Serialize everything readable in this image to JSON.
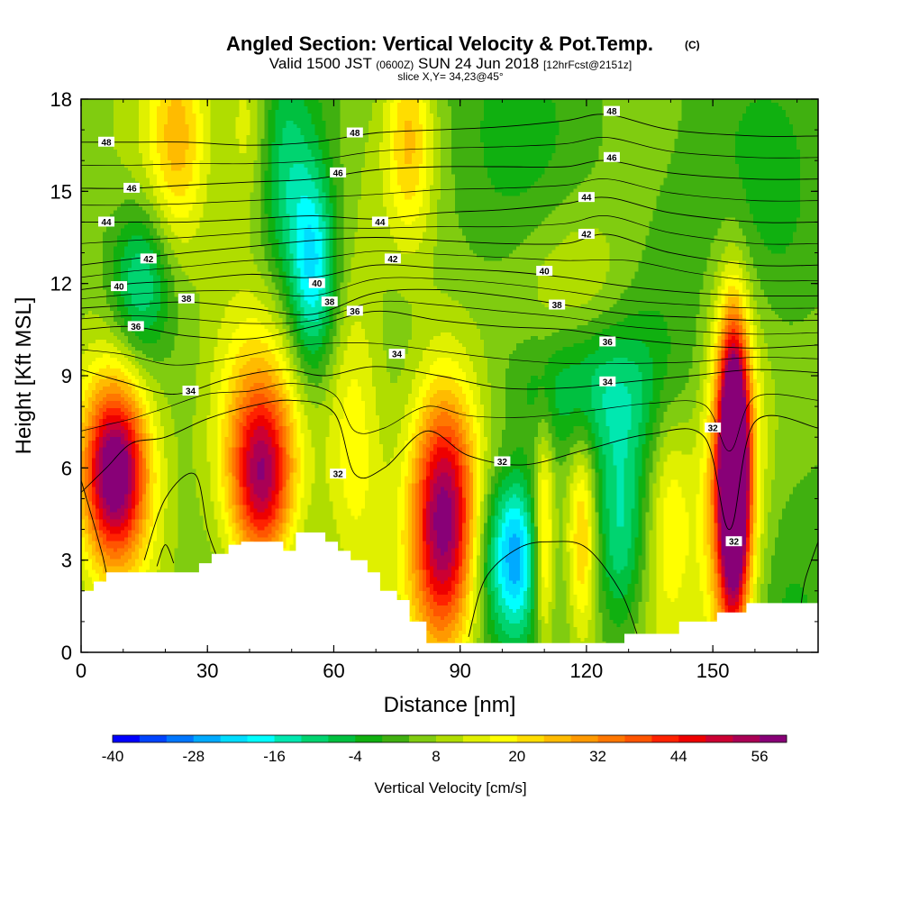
{
  "chart_data": {
    "type": "heatmap",
    "title": "Angled Section: Vertical Velocity & Pot.Temp.",
    "title_mark": "(C)",
    "subtitle_prefix": "Valid 1500 JST",
    "subtitle_utc": "(0600Z)",
    "subtitle_date": "SUN 24 Jun 2018",
    "subtitle_fcst": "[12hrFcst@2151z]",
    "slice": "slice X,Y= 34,23@45°",
    "xlabel": "Distance [nm]",
    "ylabel": "Height [Kft MSL]",
    "xlim": [
      0,
      175
    ],
    "ylim": [
      0,
      18
    ],
    "xticks": [
      "0",
      "30",
      "60",
      "90",
      "120",
      "150"
    ],
    "yticks": [
      "0",
      "3",
      "6",
      "9",
      "12",
      "15",
      "18"
    ],
    "colorbar": {
      "label": "Vertical Velocity [cm/s]",
      "min": -40,
      "max": 60,
      "step": 4,
      "tick_labels": [
        "-40",
        "-28",
        "-16",
        "-4",
        "8",
        "20",
        "32",
        "44",
        "56"
      ],
      "colors": [
        "#0000ff",
        "#0044ff",
        "#0077ff",
        "#00aaff",
        "#00ddff",
        "#00ffff",
        "#00e8b0",
        "#00d470",
        "#00c040",
        "#10b010",
        "#40b010",
        "#80cc10",
        "#b0dd00",
        "#e0f000",
        "#ffff00",
        "#ffdd00",
        "#ffbb00",
        "#ff9900",
        "#ff7700",
        "#ff5500",
        "#ff2200",
        "#ee0000",
        "#cc0033",
        "#aa0055",
        "#880077"
      ]
    },
    "terrain_top_kft": [
      [
        0,
        2
      ],
      [
        3,
        2
      ],
      [
        3,
        2.3
      ],
      [
        6,
        2.3
      ],
      [
        6,
        2.6
      ],
      [
        28,
        2.6
      ],
      [
        28,
        2.9
      ],
      [
        31,
        2.9
      ],
      [
        31,
        3.2
      ],
      [
        35,
        3.2
      ],
      [
        35,
        3.5
      ],
      [
        38,
        3.5
      ],
      [
        38,
        3.6
      ],
      [
        48,
        3.6
      ],
      [
        48,
        3.3
      ],
      [
        51,
        3.3
      ],
      [
        51,
        3.9
      ],
      [
        58,
        3.9
      ],
      [
        58,
        3.6
      ],
      [
        61,
        3.6
      ],
      [
        61,
        3.3
      ],
      [
        64,
        3.3
      ],
      [
        64,
        3.0
      ],
      [
        68,
        3.0
      ],
      [
        68,
        2.6
      ],
      [
        71,
        2.6
      ],
      [
        71,
        2.0
      ],
      [
        75,
        2.0
      ],
      [
        75,
        1.7
      ],
      [
        78,
        1.7
      ],
      [
        78,
        1.0
      ],
      [
        82,
        1.0
      ],
      [
        82,
        0.3
      ],
      [
        129,
        0.3
      ],
      [
        129,
        0.6
      ],
      [
        142,
        0.6
      ],
      [
        142,
        1.0
      ],
      [
        151,
        1.0
      ],
      [
        151,
        1.3
      ],
      [
        158,
        1.3
      ],
      [
        158,
        1.6
      ],
      [
        175,
        1.6
      ]
    ],
    "velocity_cells": [
      {
        "x": 8,
        "y": 5.8,
        "sx": 5,
        "sy": 1.9,
        "w": 46
      },
      {
        "x": 9,
        "y": 6.5,
        "sx": 9,
        "sy": 3.5,
        "w": 20
      },
      {
        "x": 43,
        "y": 5.6,
        "sx": 5,
        "sy": 2.0,
        "w": 36
      },
      {
        "x": 41,
        "y": 7.0,
        "sx": 8,
        "sy": 3.5,
        "w": 16
      },
      {
        "x": 65,
        "y": 7.0,
        "sx": 5,
        "sy": 3.5,
        "w": 14
      },
      {
        "x": 86,
        "y": 4.2,
        "sx": 5,
        "sy": 2.8,
        "w": 38
      },
      {
        "x": 86,
        "y": 5.0,
        "sx": 8,
        "sy": 3.5,
        "w": 16
      },
      {
        "x": 155,
        "y": 6.0,
        "sx": 2.4,
        "sy": 3.0,
        "w": 74
      },
      {
        "x": 154,
        "y": 5.0,
        "sx": 5,
        "sy": 4.5,
        "w": 32
      },
      {
        "x": 140,
        "y": 4.8,
        "sx": 4,
        "sy": 3.0,
        "w": 16
      },
      {
        "x": 110,
        "y": 3.6,
        "sx": 1.6,
        "sy": 2.6,
        "w": 18
      },
      {
        "x": 119,
        "y": 3.8,
        "sx": 2.4,
        "sy": 2.4,
        "w": 20
      },
      {
        "x": 23,
        "y": 16.8,
        "sx": 5,
        "sy": 2.5,
        "w": 18
      },
      {
        "x": 40,
        "y": 17.0,
        "sx": 4,
        "sy": 2.2,
        "w": 12
      },
      {
        "x": 78,
        "y": 16.8,
        "sx": 4,
        "sy": 2.5,
        "w": 18
      },
      {
        "x": 118,
        "y": 12.0,
        "sx": 10,
        "sy": 2.0,
        "w": 10
      },
      {
        "x": 14,
        "y": 12.0,
        "sx": 5,
        "sy": 1.8,
        "w": -20
      },
      {
        "x": 55,
        "y": 12.3,
        "sx": 4,
        "sy": 2.4,
        "w": -26
      },
      {
        "x": 99,
        "y": 3.3,
        "sx": 4,
        "sy": 2.0,
        "w": -20
      },
      {
        "x": 104,
        "y": 3.2,
        "sx": 3,
        "sy": 1.8,
        "w": -22
      },
      {
        "x": 128,
        "y": 3.8,
        "sx": 4,
        "sy": 2.5,
        "w": -16
      },
      {
        "x": 118,
        "y": 8.6,
        "sx": 13,
        "sy": 1.6,
        "w": -14
      },
      {
        "x": 48,
        "y": 15.5,
        "sx": 5,
        "sy": 3.0,
        "w": -12
      },
      {
        "x": 150,
        "y": 15.0,
        "sx": 16,
        "sy": 4.0,
        "w": -4
      },
      {
        "x": 165,
        "y": 13.5,
        "sx": 8,
        "sy": 3.0,
        "w": -2
      }
    ],
    "isentropes": [
      {
        "label": "32",
        "pts": [
          [
            0,
            5.2
          ],
          [
            6,
            6.0
          ],
          [
            12,
            6.8
          ],
          [
            20,
            7.0
          ],
          [
            30,
            7.6
          ],
          [
            40,
            8.0
          ],
          [
            50,
            8.2
          ],
          [
            60,
            7.8
          ],
          [
            65,
            5.8
          ],
          [
            72,
            6.0
          ],
          [
            82,
            7.2
          ],
          [
            92,
            6.4
          ],
          [
            105,
            6.1
          ],
          [
            120,
            6.6
          ],
          [
            135,
            7.1
          ],
          [
            148,
            7.0
          ],
          [
            154,
            4.0
          ],
          [
            160,
            7.5
          ],
          [
            175,
            7.3
          ]
        ],
        "labels": [
          [
            61,
            5.8
          ],
          [
            100,
            6.2
          ],
          [
            150,
            7.3
          ],
          [
            155,
            3.6
          ]
        ]
      },
      {
        "label": "34",
        "pts": [
          [
            0,
            9.2
          ],
          [
            10,
            8.8
          ],
          [
            22,
            8.4
          ],
          [
            35,
            8.9
          ],
          [
            48,
            9.2
          ],
          [
            58,
            9.0
          ],
          [
            70,
            9.3
          ],
          [
            85,
            9.0
          ],
          [
            100,
            8.6
          ],
          [
            115,
            8.6
          ],
          [
            130,
            8.8
          ],
          [
            145,
            9.0
          ],
          [
            160,
            9.2
          ],
          [
            175,
            9.1
          ]
        ],
        "labels": [
          [
            26,
            8.5
          ],
          [
            75,
            9.7
          ],
          [
            125,
            8.8
          ]
        ]
      },
      {
        "label": "36",
        "pts": [
          [
            0,
            10.5
          ],
          [
            12,
            10.6
          ],
          [
            25,
            10.3
          ],
          [
            40,
            10.2
          ],
          [
            55,
            10.6
          ],
          [
            70,
            11.1
          ],
          [
            85,
            10.8
          ],
          [
            100,
            10.6
          ],
          [
            115,
            10.5
          ],
          [
            130,
            10.2
          ],
          [
            145,
            10.0
          ],
          [
            160,
            9.9
          ],
          [
            175,
            10.0
          ]
        ],
        "labels": [
          [
            13,
            10.6
          ],
          [
            65,
            11.1
          ],
          [
            125,
            10.1
          ]
        ]
      },
      {
        "label": "38",
        "pts": [
          [
            0,
            11.2
          ],
          [
            12,
            11.3
          ],
          [
            25,
            11.4
          ],
          [
            40,
            11.2
          ],
          [
            55,
            11.0
          ],
          [
            70,
            11.7
          ],
          [
            85,
            11.8
          ],
          [
            100,
            11.6
          ],
          [
            115,
            11.3
          ],
          [
            130,
            11.0
          ],
          [
            145,
            10.9
          ],
          [
            160,
            10.8
          ],
          [
            175,
            10.8
          ]
        ],
        "labels": [
          [
            25,
            11.5
          ],
          [
            59,
            11.4
          ],
          [
            113,
            11.3
          ]
        ]
      },
      {
        "label": "40",
        "pts": [
          [
            0,
            11.8
          ],
          [
            12,
            12.0
          ],
          [
            25,
            12.1
          ],
          [
            40,
            12.3
          ],
          [
            55,
            12.2
          ],
          [
            70,
            12.6
          ],
          [
            85,
            12.5
          ],
          [
            100,
            12.4
          ],
          [
            115,
            12.2
          ],
          [
            130,
            11.9
          ],
          [
            145,
            11.7
          ],
          [
            160,
            11.6
          ],
          [
            175,
            11.6
          ]
        ],
        "labels": [
          [
            9,
            11.9
          ],
          [
            56,
            12.0
          ],
          [
            110,
            12.4
          ]
        ]
      },
      {
        "label": "42",
        "pts": [
          [
            0,
            12.6
          ],
          [
            12,
            12.8
          ],
          [
            25,
            13.0
          ],
          [
            40,
            13.2
          ],
          [
            55,
            13.4
          ],
          [
            70,
            13.5
          ],
          [
            85,
            13.4
          ],
          [
            100,
            13.3
          ],
          [
            115,
            13.3
          ],
          [
            125,
            13.6
          ],
          [
            140,
            13.0
          ],
          [
            160,
            12.6
          ],
          [
            175,
            12.6
          ]
        ],
        "labels": [
          [
            16,
            12.8
          ],
          [
            74,
            12.8
          ],
          [
            120,
            13.6
          ]
        ]
      },
      {
        "label": "44",
        "pts": [
          [
            0,
            14.0
          ],
          [
            12,
            14.0
          ],
          [
            25,
            14.0
          ],
          [
            40,
            14.1
          ],
          [
            55,
            14.2
          ],
          [
            70,
            14.1
          ],
          [
            85,
            14.3
          ],
          [
            100,
            14.4
          ],
          [
            115,
            14.6
          ],
          [
            125,
            14.8
          ],
          [
            140,
            14.3
          ],
          [
            160,
            14.0
          ],
          [
            175,
            14.0
          ]
        ],
        "labels": [
          [
            6,
            14.0
          ],
          [
            71,
            14.0
          ],
          [
            120,
            14.8
          ]
        ]
      },
      {
        "label": "46",
        "pts": [
          [
            0,
            15.1
          ],
          [
            12,
            15.1
          ],
          [
            25,
            15.2
          ],
          [
            40,
            15.3
          ],
          [
            55,
            15.4
          ],
          [
            70,
            15.7
          ],
          [
            85,
            15.8
          ],
          [
            100,
            15.8
          ],
          [
            115,
            15.8
          ],
          [
            125,
            16.0
          ],
          [
            140,
            15.6
          ],
          [
            160,
            15.4
          ],
          [
            175,
            15.4
          ]
        ],
        "labels": [
          [
            12,
            15.1
          ],
          [
            61,
            15.6
          ],
          [
            126,
            16.1
          ]
        ]
      },
      {
        "label": "48",
        "pts": [
          [
            0,
            16.6
          ],
          [
            12,
            16.6
          ],
          [
            25,
            16.6
          ],
          [
            40,
            16.5
          ],
          [
            55,
            16.6
          ],
          [
            70,
            16.9
          ],
          [
            85,
            17.0
          ],
          [
            100,
            17.1
          ],
          [
            115,
            17.3
          ],
          [
            125,
            17.5
          ],
          [
            140,
            17.0
          ],
          [
            160,
            16.8
          ],
          [
            175,
            16.8
          ]
        ],
        "labels": [
          [
            6,
            16.6
          ],
          [
            65,
            16.9
          ],
          [
            126,
            17.6
          ]
        ]
      }
    ],
    "extra_contours": [
      {
        "label": "32",
        "pts": [
          [
            15,
            3.0
          ],
          [
            20,
            5.0
          ],
          [
            27,
            5.8
          ],
          [
            30,
            4.0
          ],
          [
            32,
            3.2
          ]
        ]
      },
      {
        "label": "32",
        "pts": [
          [
            18,
            2.8
          ],
          [
            20,
            3.5
          ],
          [
            22,
            2.9
          ]
        ]
      },
      {
        "label": "32",
        "pts": [
          [
            92,
            0.5
          ],
          [
            96,
            2.4
          ],
          [
            104,
            3.4
          ],
          [
            112,
            3.6
          ],
          [
            120,
            3.4
          ],
          [
            128,
            2.0
          ],
          [
            132,
            0.6
          ]
        ]
      },
      {
        "label": "32",
        "pts": [
          [
            0,
            5.6
          ],
          [
            3,
            4.2
          ],
          [
            5,
            3.2
          ],
          [
            6,
            2.6
          ]
        ]
      },
      {
        "label": "32",
        "pts": [
          [
            175,
            3.6
          ],
          [
            172,
            2.4
          ],
          [
            171,
            1.6
          ]
        ]
      }
    ]
  }
}
